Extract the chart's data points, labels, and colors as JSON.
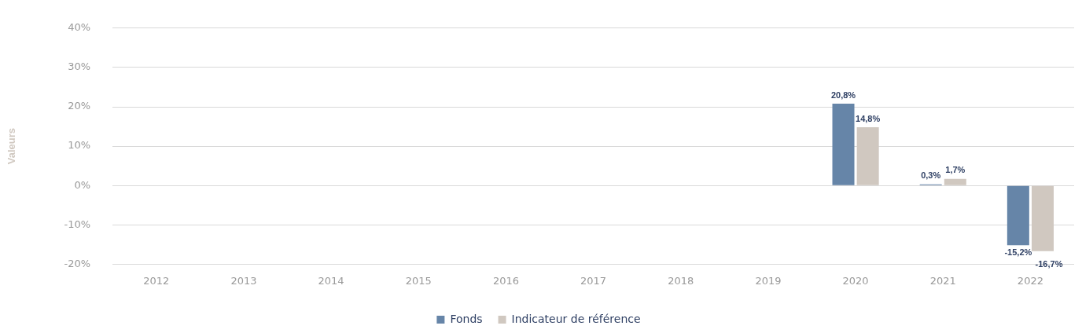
{
  "chart_data": {
    "type": "bar",
    "ylabel": "Valeurs",
    "categories": [
      "2012",
      "2013",
      "2014",
      "2015",
      "2016",
      "2017",
      "2018",
      "2019",
      "2020",
      "2021",
      "2022"
    ],
    "series": [
      {
        "name": "Fonds",
        "color": "#6685a8",
        "values": [
          null,
          null,
          null,
          null,
          null,
          null,
          null,
          null,
          20.8,
          0.3,
          -15.2
        ],
        "value_labels": [
          null,
          null,
          null,
          null,
          null,
          null,
          null,
          null,
          "20,8%",
          "0,3%",
          "-15,2%"
        ]
      },
      {
        "name": "Indicateur de référence",
        "color": "#d0c8c0",
        "values": [
          null,
          null,
          null,
          null,
          null,
          null,
          null,
          null,
          14.8,
          1.7,
          -16.7
        ],
        "value_labels": [
          null,
          null,
          null,
          null,
          null,
          null,
          null,
          null,
          "14,8%",
          "1,7%",
          "-16,7%"
        ]
      }
    ],
    "ylim": [
      -20,
      40
    ],
    "yticks": [
      {
        "value": -20,
        "label": "-20%"
      },
      {
        "value": -10,
        "label": "-10%"
      },
      {
        "value": 0,
        "label": "0%"
      },
      {
        "value": 10,
        "label": "10%"
      },
      {
        "value": 20,
        "label": "20%"
      },
      {
        "value": 30,
        "label": "30%"
      },
      {
        "value": 40,
        "label": "40%"
      }
    ],
    "grid": "y",
    "legend": "bottom"
  }
}
